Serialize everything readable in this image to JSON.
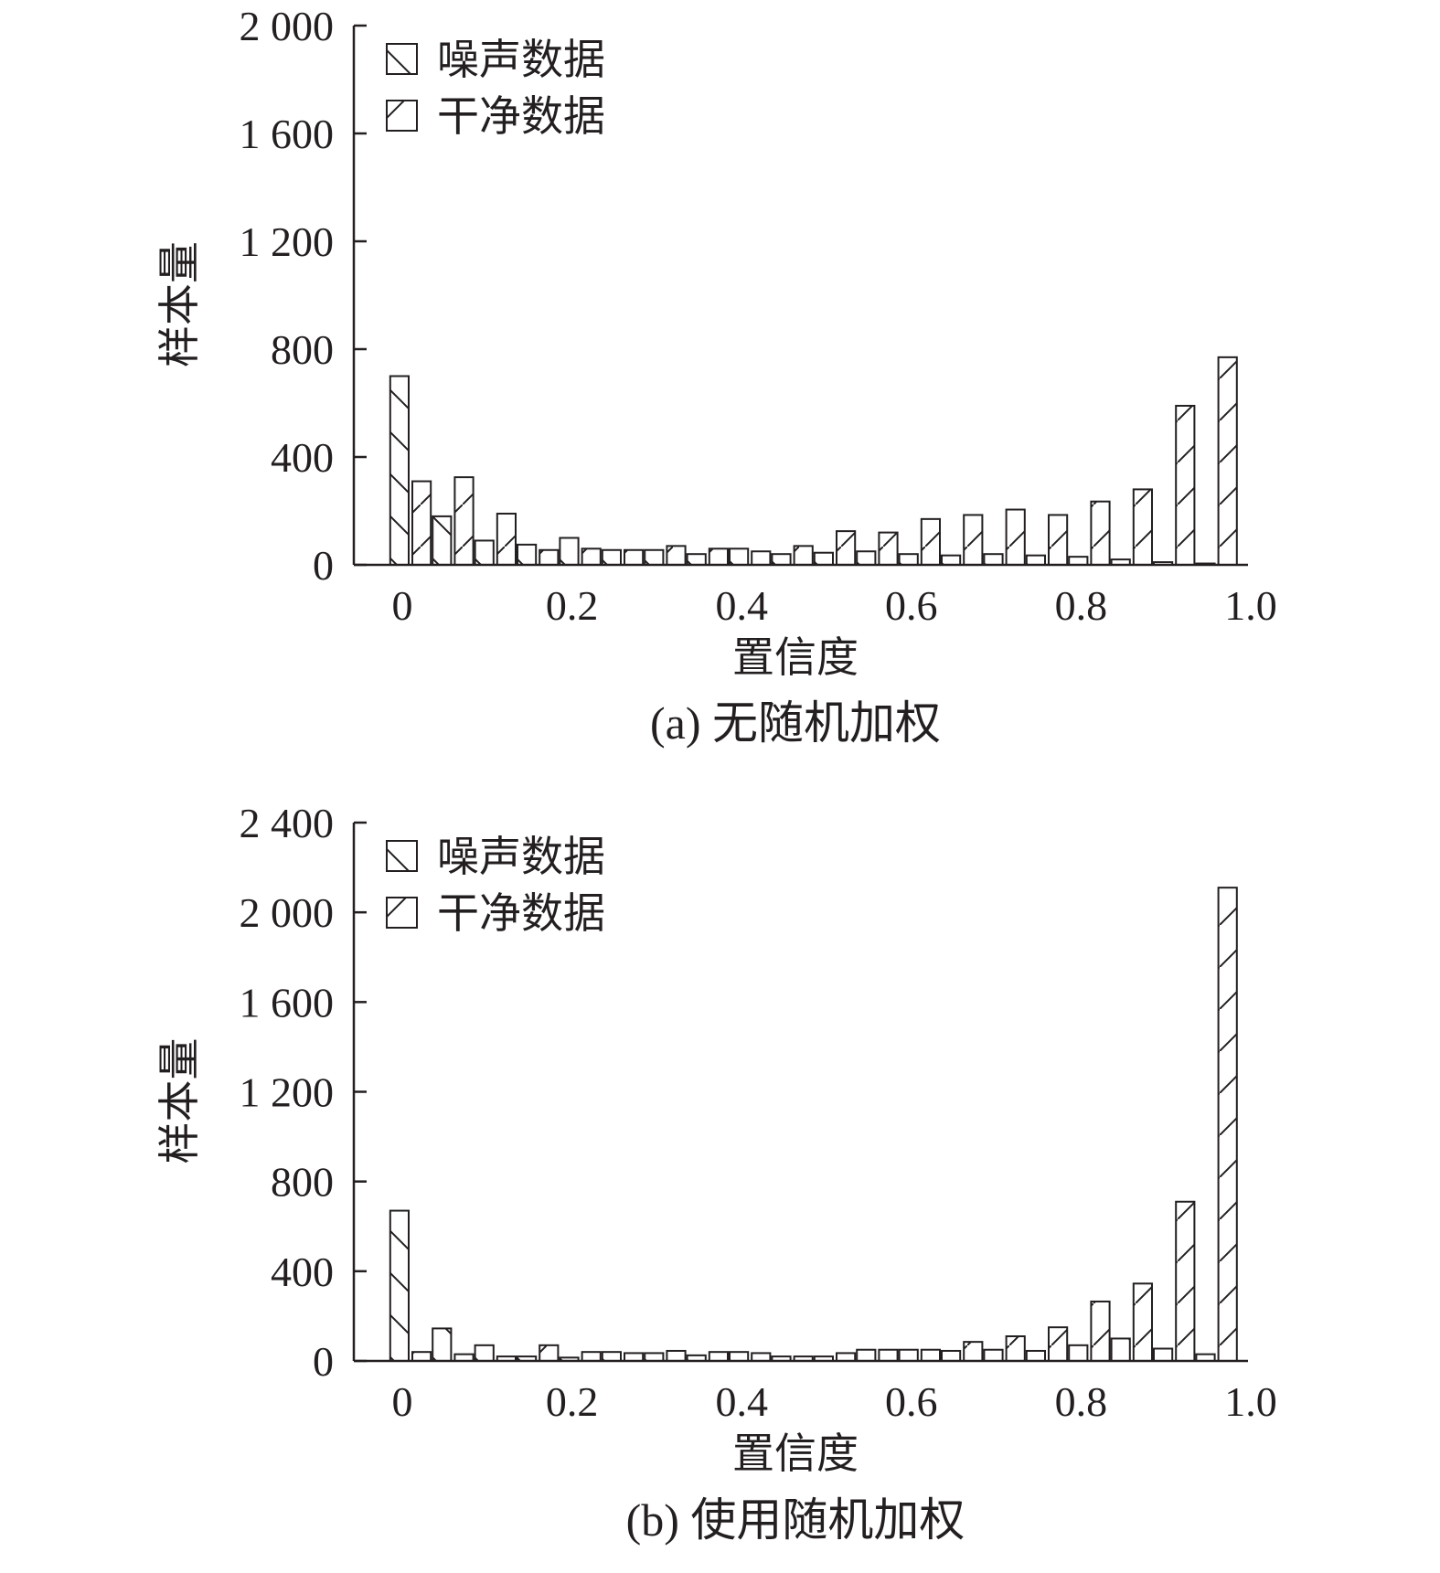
{
  "chart_data": [
    {
      "type": "bar",
      "caption": "(a) 无随机加权",
      "xlabel": "置信度",
      "ylabel": "样本量",
      "ylim": [
        0,
        2000
      ],
      "yticks": [
        0,
        400,
        800,
        1200,
        1600,
        2000
      ],
      "ytick_labels": [
        "0",
        "400",
        "800",
        "1 200",
        "1 600",
        "2 000"
      ],
      "xlim": [
        -0.025,
        1.0
      ],
      "xticks": [
        0,
        0.2,
        0.4,
        0.6,
        0.8,
        1.0
      ],
      "xtick_labels": [
        "0",
        "0.2",
        "0.4",
        "0.6",
        "0.8",
        "1.0"
      ],
      "legend_position": "top-left",
      "bin_centers": [
        0,
        0.05,
        0.1,
        0.15,
        0.2,
        0.25,
        0.3,
        0.35,
        0.4,
        0.45,
        0.5,
        0.55,
        0.6,
        0.65,
        0.7,
        0.75,
        0.8,
        0.85,
        0.9,
        0.95
      ],
      "series": [
        {
          "name": "噪声数据",
          "hatch": "backslash",
          "values": [
            700,
            180,
            90,
            75,
            100,
            55,
            55,
            40,
            60,
            40,
            45,
            50,
            40,
            35,
            40,
            35,
            30,
            20,
            10,
            5
          ]
        },
        {
          "name": "干净数据",
          "hatch": "slash",
          "values": [
            310,
            325,
            190,
            55,
            60,
            55,
            70,
            60,
            50,
            70,
            125,
            120,
            170,
            185,
            205,
            185,
            235,
            280,
            590,
            770
          ]
        }
      ]
    },
    {
      "type": "bar",
      "caption": "(b) 使用随机加权",
      "xlabel": "置信度",
      "ylabel": "样本量",
      "ylim": [
        0,
        2400
      ],
      "yticks": [
        0,
        400,
        800,
        1200,
        1600,
        2000,
        2400
      ],
      "ytick_labels": [
        "0",
        "400",
        "800",
        "1 200",
        "1 600",
        "2 000",
        "2 400"
      ],
      "xlim": [
        -0.025,
        1.0
      ],
      "xticks": [
        0,
        0.2,
        0.4,
        0.6,
        0.8,
        1.0
      ],
      "xtick_labels": [
        "0",
        "0.2",
        "0.4",
        "0.6",
        "0.8",
        "1.0"
      ],
      "legend_position": "top-left",
      "bin_centers": [
        0,
        0.05,
        0.1,
        0.15,
        0.2,
        0.25,
        0.3,
        0.35,
        0.4,
        0.45,
        0.5,
        0.55,
        0.6,
        0.65,
        0.7,
        0.75,
        0.8,
        0.85,
        0.9,
        0.95
      ],
      "series": [
        {
          "name": "噪声数据",
          "hatch": "backslash",
          "values": [
            670,
            145,
            70,
            20,
            15,
            40,
            35,
            25,
            40,
            20,
            20,
            50,
            50,
            45,
            50,
            45,
            70,
            100,
            55,
            30
          ]
        },
        {
          "name": "干净数据",
          "hatch": "slash",
          "values": [
            40,
            30,
            20,
            70,
            40,
            35,
            45,
            40,
            35,
            20,
            35,
            50,
            50,
            85,
            110,
            150,
            265,
            345,
            710,
            2110
          ]
        }
      ]
    }
  ]
}
